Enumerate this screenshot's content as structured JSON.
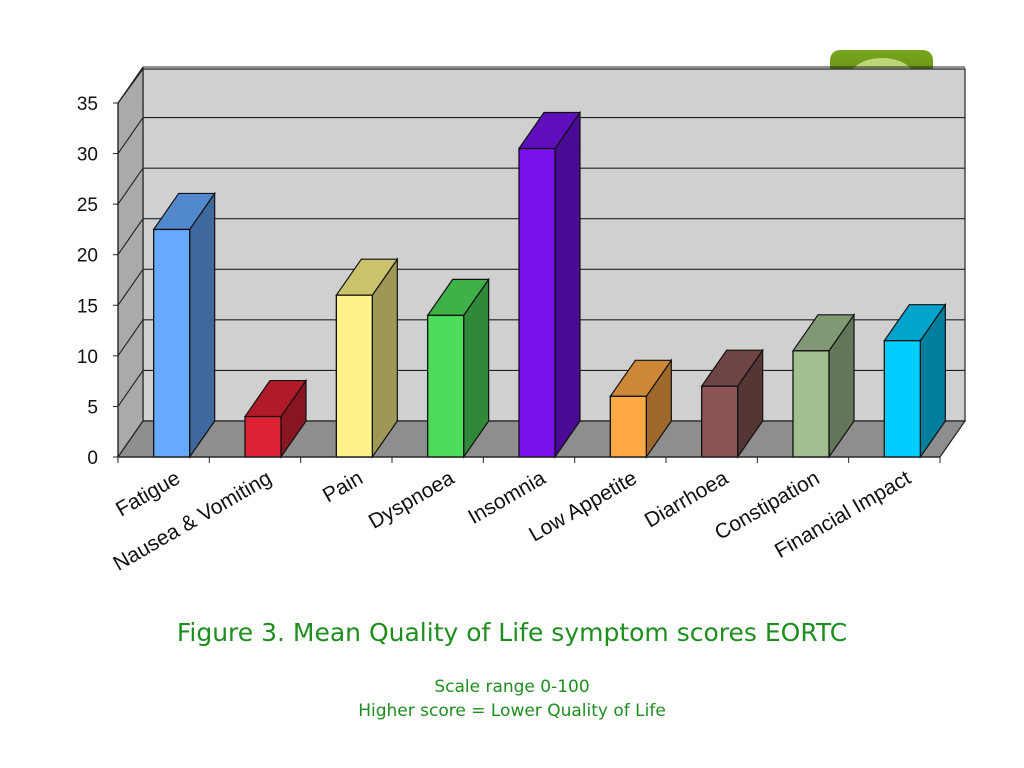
{
  "chart_data": {
    "type": "bar",
    "categories": [
      "Fatigue",
      "Nausea & Vomiting",
      "Pain",
      "Dyspnoea",
      "Insomnia",
      "Low Appetite",
      "Diarrhoea",
      "Constipation",
      "Financial Impact"
    ],
    "values": [
      22.5,
      4,
      16,
      14,
      30.5,
      6,
      7,
      10.5,
      11.5
    ],
    "colors": [
      "#66aaff",
      "#dd2233",
      "#fff38a",
      "#4ddd5a",
      "#7711ee",
      "#ffaa44",
      "#8b5555",
      "#a0be90",
      "#00ccff"
    ],
    "ylim": [
      0,
      35
    ],
    "yticks": [
      0,
      5,
      10,
      15,
      20,
      25,
      30,
      35
    ],
    "grid": true,
    "style": "3d"
  },
  "caption": "Figure 3. Mean Quality of Life symptom scores EORTC",
  "notes": {
    "line1": "Scale range 0-100",
    "line2": "Higher score = Lower Quality of Life"
  }
}
